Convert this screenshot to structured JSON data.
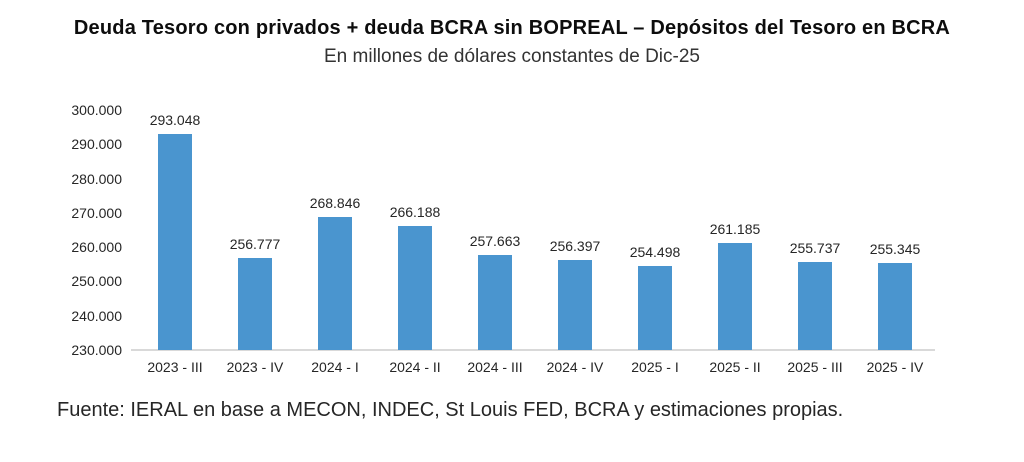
{
  "title": "Deuda Tesoro con privados + deuda BCRA sin BOPREAL – Depósitos del Tesoro en BCRA",
  "subtitle": "En millones de dólares constantes de Dic-25",
  "source": "Fuente: IERAL en base a MECON, INDEC, St Louis FED, BCRA y estimaciones propias.",
  "colors": {
    "bar": "#4a95cf",
    "axis_line": "#d9d9d9",
    "label_text": "#262626"
  },
  "chart_data": {
    "type": "bar",
    "title": "Deuda Tesoro con privados + deuda BCRA sin BOPREAL – Depósitos del Tesoro en BCRA",
    "subtitle": "En millones de dólares constantes de Dic-25",
    "xlabel": "",
    "ylabel": "",
    "categories": [
      "2023 - III",
      "2023 - IV",
      "2024 - I",
      "2024 - II",
      "2024 - III",
      "2024 - IV",
      "2025 - I",
      "2025 - II",
      "2025 - III",
      "2025 - IV"
    ],
    "values": [
      293048,
      256777,
      268846,
      266188,
      257663,
      256397,
      254498,
      261185,
      255737,
      255345
    ],
    "value_labels": [
      "293.048",
      "256.777",
      "268.846",
      "266.188",
      "257.663",
      "256.397",
      "254.498",
      "261.185",
      "255.737",
      "255.345"
    ],
    "ylim": [
      230000,
      300000
    ],
    "ytick_step": 10000,
    "ytick_labels": [
      "300.000",
      "290.000",
      "280.000",
      "270.000",
      "260.000",
      "250.000",
      "240.000",
      "230.000"
    ],
    "grid": false,
    "legend": false,
    "data_labels": true
  }
}
